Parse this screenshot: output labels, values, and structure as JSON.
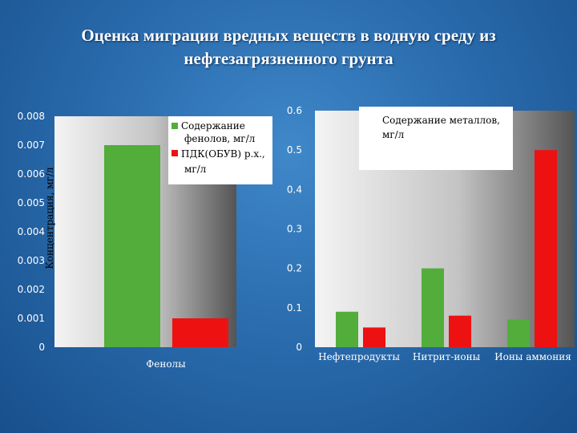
{
  "title": "Оценка миграции вредных веществ в водную среду из нефтезагрязненного грунта",
  "colors": {
    "green": "#52ad3b",
    "red": "#ee1111"
  },
  "chart_data": [
    {
      "type": "bar",
      "categories": [
        "Фенолы"
      ],
      "series": [
        {
          "name": "Содержание фенолов, мг/л",
          "values": [
            0.007
          ],
          "color": "#52ad3b"
        },
        {
          "name": "ПДК(ОБУВ) р.х., мг/л",
          "values": [
            0.001
          ],
          "color": "#ee1111"
        }
      ],
      "ylabel": "Концентрация, мг/л",
      "yticks": [
        "0.008",
        "0.007",
        "0.006",
        "0.005",
        "0.004",
        "0.003",
        "0.002",
        "0.001",
        "0"
      ],
      "ylim": [
        0,
        0.008
      ],
      "legend": "top-right"
    },
    {
      "type": "bar",
      "categories": [
        "Нефтепродукты",
        "Нитрит-ионы",
        "Ионы аммония"
      ],
      "series": [
        {
          "name": "Содержание металлов, мг/л",
          "values": [
            0.09,
            0.2,
            0.07
          ],
          "color": "#52ad3b"
        },
        {
          "name": "",
          "values": [
            0.05,
            0.08,
            0.5
          ],
          "color": "#ee1111"
        }
      ],
      "yticks": [
        "0.6",
        "0.5",
        "0.4",
        "0.3",
        "0.2",
        "0.1",
        "0"
      ],
      "ylim": [
        0,
        0.6
      ],
      "legend": "top"
    }
  ]
}
